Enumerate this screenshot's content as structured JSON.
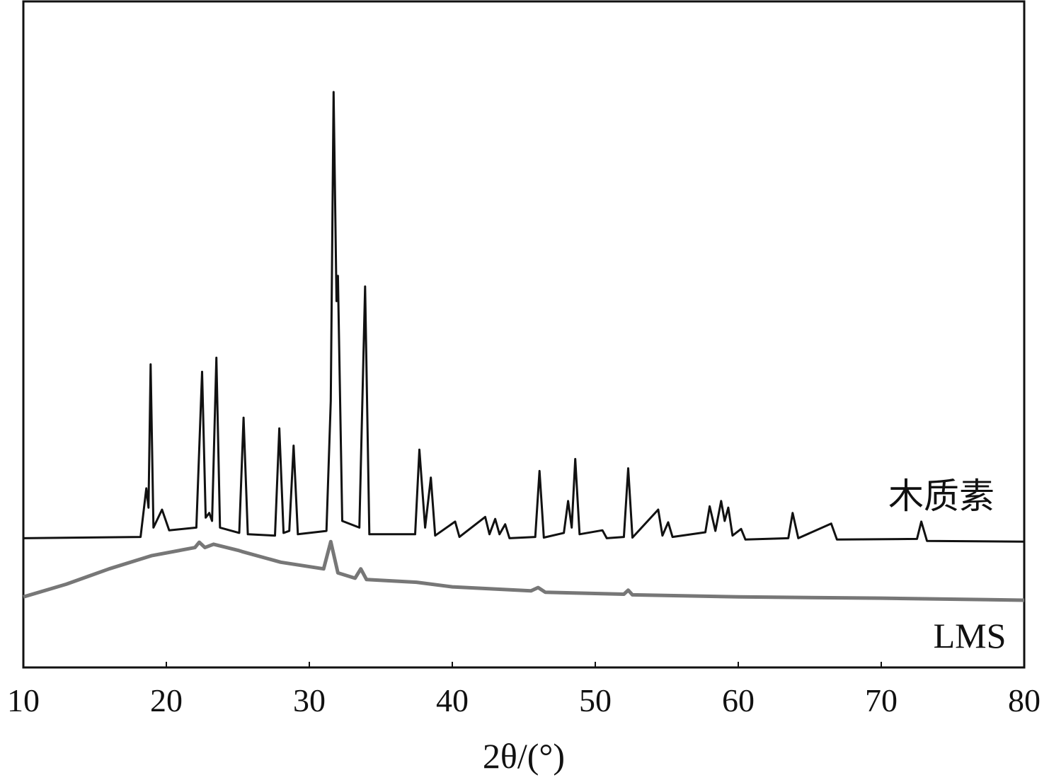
{
  "chart_data": {
    "type": "line",
    "x_label": "2θ/(°)",
    "xlim": [
      10,
      80
    ],
    "xticks": [
      10,
      20,
      30,
      40,
      50,
      60,
      70,
      80
    ],
    "ylim": [
      0,
      100
    ],
    "grid": false,
    "series": [
      {
        "name": "木质素",
        "color": "#111111",
        "x": [
          10,
          18.2,
          18.6,
          18.75,
          18.9,
          19.1,
          19.7,
          20.2,
          22.1,
          22.5,
          22.75,
          23.0,
          23.2,
          23.5,
          23.75,
          25.1,
          25.4,
          25.7,
          27.6,
          27.9,
          28.2,
          28.6,
          28.9,
          29.2,
          31.2,
          31.5,
          31.7,
          31.9,
          32.0,
          32.3,
          33.5,
          33.9,
          34.2,
          37.4,
          37.7,
          38.1,
          38.5,
          38.8,
          40.2,
          40.5,
          42.3,
          42.6,
          43.0,
          43.3,
          43.7,
          44,
          45.8,
          46.1,
          46.4,
          47.8,
          48.1,
          48.35,
          48.6,
          48.9,
          50.5,
          50.8,
          52.0,
          52.3,
          52.6,
          54.4,
          54.7,
          55.1,
          55.4,
          57.7,
          58.0,
          58.4,
          58.8,
          59.05,
          59.3,
          59.6,
          60.2,
          60.5,
          63.5,
          63.8,
          64.2,
          66.5,
          66.9,
          72.5,
          72.8,
          73.2,
          80
        ],
        "values": [
          19.4,
          19.6,
          26.9,
          24,
          45.5,
          21,
          23.7,
          20.6,
          21.0,
          44.4,
          22.5,
          23.2,
          22,
          46.5,
          21,
          20.2,
          37.5,
          20,
          19.8,
          35.9,
          20.2,
          20.5,
          33.3,
          20,
          20.5,
          40,
          86.4,
          55,
          58.8,
          22,
          21,
          57.2,
          20,
          20,
          32.7,
          21,
          28.5,
          19.8,
          21.9,
          19.6,
          22.6,
          20,
          22.3,
          20,
          21.5,
          19.4,
          19.6,
          29.5,
          19.5,
          20.2,
          25.0,
          21,
          31.3,
          20,
          20.6,
          19.4,
          19.6,
          29.9,
          19.5,
          23.7,
          19.8,
          21.8,
          19.6,
          20.3,
          24.2,
          20.5,
          25.0,
          22,
          24.0,
          19.8,
          20.8,
          19.2,
          19.4,
          23.2,
          19.4,
          21.6,
          19.2,
          19.3,
          21.9,
          19.0,
          18.9
        ]
      },
      {
        "name": "LMS",
        "color": "#777777",
        "x": [
          10,
          13,
          16,
          19,
          22,
          22.3,
          22.7,
          23.3,
          25,
          25.3,
          28,
          31,
          31.5,
          32,
          33.2,
          33.6,
          34,
          37.5,
          40,
          45.5,
          46,
          46.5,
          52,
          52.3,
          52.6,
          60,
          70,
          80
        ],
        "values": [
          10.6,
          12.5,
          14.8,
          16.8,
          18.0,
          18.8,
          18.0,
          18.5,
          17.6,
          17.4,
          15.8,
          14.8,
          18.9,
          14.2,
          13.4,
          14.8,
          13.2,
          12.8,
          12.1,
          11.5,
          12.0,
          11.3,
          11.0,
          11.6,
          10.9,
          10.6,
          10.4,
          10.1
        ]
      }
    ]
  }
}
